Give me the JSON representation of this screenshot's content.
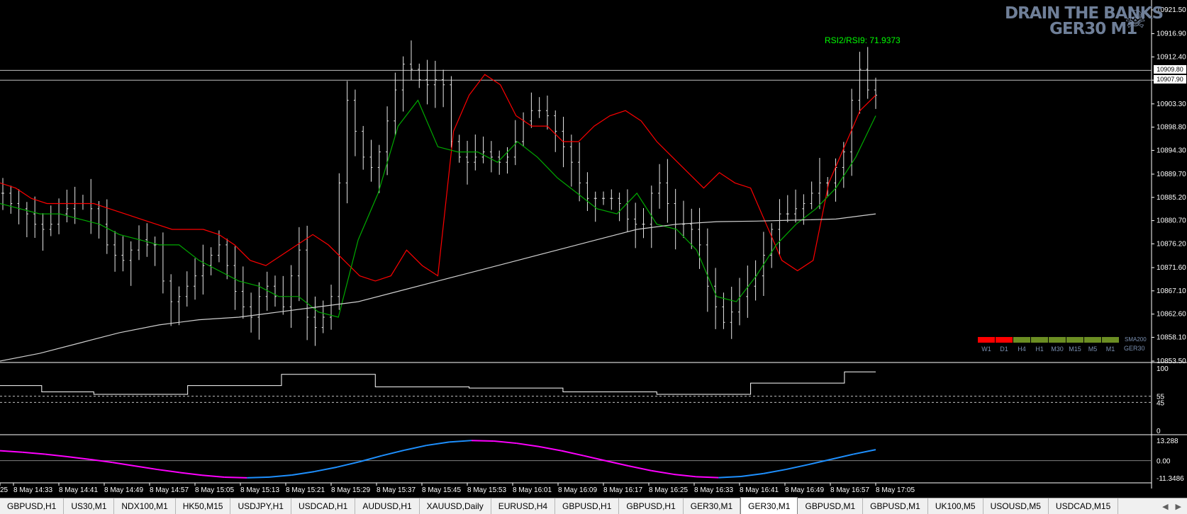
{
  "brand": {
    "line1": "DRAIN THE BANKS",
    "line2": "GER30 M1",
    "logo_icon": "skull-crossbones-icon"
  },
  "indicator_label": "RSI2/RSI9: 71.9373",
  "price_markers": [
    "10909.80",
    "10907.90"
  ],
  "timeframe_panel": {
    "items": [
      {
        "label": "W1",
        "color": "#ff0000"
      },
      {
        "label": "D1",
        "color": "#ff0000"
      },
      {
        "label": "H4",
        "color": "#6b8e23"
      },
      {
        "label": "H1",
        "color": "#6b8e23"
      },
      {
        "label": "M30",
        "color": "#6b8e23"
      },
      {
        "label": "M15",
        "color": "#6b8e23"
      },
      {
        "label": "M5",
        "color": "#6b8e23"
      },
      {
        "label": "M1",
        "color": "#6b8e23"
      }
    ],
    "sma_label": "SMA200",
    "symbol_label": "GER30"
  },
  "tabs": [
    {
      "label": "GBPUSD,H1"
    },
    {
      "label": "US30,M1"
    },
    {
      "label": "NDX100,M1"
    },
    {
      "label": "HK50,M15"
    },
    {
      "label": "USDJPY,H1"
    },
    {
      "label": "USDCAD,H1"
    },
    {
      "label": "AUDUSD,H1"
    },
    {
      "label": "XAUUSD,Daily"
    },
    {
      "label": "EURUSD,H4"
    },
    {
      "label": "GBPUSD,H1"
    },
    {
      "label": "GBPUSD,H1"
    },
    {
      "label": "GER30,M1"
    },
    {
      "label": "GER30,M1",
      "active": true
    },
    {
      "label": "GBPUSD,M1"
    },
    {
      "label": "GBPUSD,M1"
    },
    {
      "label": "UK100,M5"
    },
    {
      "label": "USOUSD,M5"
    },
    {
      "label": "USDCAD,M15"
    }
  ],
  "tab_nav": {
    "left_icon": "arrow-left-icon",
    "right_icon": "arrow-right-icon"
  },
  "chart_data": [
    {
      "type": "ohlc",
      "title": "GER30 M1",
      "ylim": [
        10853.5,
        10921.5
      ],
      "y_ticks": [
        "10921.50",
        "10916.90",
        "10912.40",
        "10907.90",
        "10903.30",
        "10898.80",
        "10894.30",
        "10889.70",
        "10885.20",
        "10880.70",
        "10876.20",
        "10871.60",
        "10867.10",
        "10862.60",
        "10858.10",
        "10853.50"
      ],
      "x_ticks": [
        "25",
        "8 May 14:33",
        "8 May 14:41",
        "8 May 14:49",
        "8 May 14:57",
        "8 May 15:05",
        "8 May 15:13",
        "8 May 15:21",
        "8 May 15:29",
        "8 May 15:37",
        "8 May 15:45",
        "8 May 15:53",
        "8 May 16:01",
        "8 May 16:09",
        "8 May 16:17",
        "8 May 16:25",
        "8 May 16:33",
        "8 May 16:41",
        "8 May 16:49",
        "8 May 16:57",
        "8 May 17:05"
      ],
      "horizontal_lines": [
        10909.8,
        10907.9
      ],
      "close": [
        10886,
        10884,
        10883,
        10882,
        10880,
        10879,
        10880,
        10882,
        10883,
        10884,
        10884,
        10883,
        10880,
        10876,
        10874,
        10873,
        10875,
        10877,
        10876,
        10876,
        10869,
        10865,
        10866,
        10868,
        10870,
        10872,
        10874,
        10876,
        10872,
        10867,
        10864,
        10862,
        10866,
        10868,
        10866,
        10864,
        10870,
        10875,
        10862,
        10860,
        10862,
        10866,
        10888,
        10904,
        10898,
        10893,
        10891,
        10894,
        10900,
        10906,
        10911,
        10910,
        10908,
        10907,
        10908,
        10907,
        10896,
        10893,
        10892,
        10893,
        10894,
        10893,
        10892,
        10893,
        10896,
        10900,
        10902,
        10902,
        10901,
        10898,
        10895,
        10892,
        10888,
        10885,
        10885,
        10885,
        10885,
        10884,
        10881,
        10880,
        10880,
        10886,
        10888,
        10884,
        10880,
        10880,
        10879,
        10876,
        10868,
        10864,
        10861,
        10863,
        10866,
        10868,
        10870,
        10874,
        10879,
        10882,
        10882,
        10883,
        10884,
        10886,
        10888,
        10888,
        10891,
        10894,
        10904,
        10910,
        10906,
        10905
      ],
      "series": [
        {
          "name": "EMA fast",
          "color": "#ff0000",
          "values": [
            10888,
            10887,
            10885,
            10884,
            10884,
            10884,
            10884,
            10883,
            10882,
            10881,
            10880,
            10879,
            10879,
            10879,
            10878,
            10876,
            10873,
            10872,
            10874,
            10876,
            10878,
            10876,
            10873,
            10870,
            10869,
            10870,
            10875,
            10872,
            10870,
            10898,
            10905,
            10909,
            10907,
            10901,
            10899,
            10899,
            10896,
            10896,
            10899,
            10901,
            10902,
            10900,
            10896,
            10893,
            10890,
            10887,
            10890,
            10888,
            10887,
            10880,
            10873,
            10871,
            10873,
            10888,
            10895,
            10902,
            10905
          ]
        },
        {
          "name": "EMA slow",
          "color": "#00aa00",
          "values": [
            10884,
            10883,
            10882,
            10882,
            10881,
            10880,
            10878,
            10877,
            10876,
            10876,
            10873,
            10871,
            10869,
            10868,
            10866,
            10866,
            10863,
            10862,
            10877,
            10886,
            10899,
            10904,
            10895,
            10894,
            10894,
            10892,
            10896,
            10893,
            10889,
            10886,
            10883,
            10882,
            10886,
            10880,
            10879,
            10875,
            10866,
            10865,
            10870,
            10876,
            10880,
            10883,
            10887,
            10893,
            10901
          ]
        },
        {
          "name": "SMA200",
          "color": "#d0d0d0",
          "values": [
            10853.5,
            10855,
            10857,
            10859,
            10860.5,
            10861.5,
            10862,
            10863,
            10864,
            10865,
            10867,
            10869,
            10871,
            10873,
            10875,
            10877,
            10879,
            10880,
            10880.5,
            10880.6,
            10880.8,
            10881,
            10882
          ]
        }
      ]
    },
    {
      "type": "step",
      "title": "",
      "ylim": [
        0,
        100
      ],
      "y_ticks": [
        "100",
        "55",
        "45",
        "0"
      ],
      "levels": [
        55,
        45
      ],
      "values": [
        72,
        72,
        72,
        72,
        62,
        62,
        62,
        62,
        62,
        58,
        58,
        58,
        58,
        58,
        58,
        58,
        58,
        58,
        72,
        72,
        72,
        72,
        72,
        72,
        72,
        72,
        72,
        90,
        90,
        90,
        90,
        90,
        90,
        90,
        90,
        90,
        70,
        70,
        70,
        70,
        70,
        70,
        70,
        70,
        70,
        68,
        68,
        68,
        68,
        68,
        68,
        68,
        68,
        68,
        62,
        62,
        62,
        62,
        62,
        62,
        62,
        62,
        62,
        58,
        58,
        58,
        58,
        58,
        58,
        58,
        58,
        58,
        76,
        76,
        76,
        76,
        76,
        76,
        76,
        76,
        76,
        94,
        94,
        94,
        94
      ]
    },
    {
      "type": "line",
      "title": "",
      "ylim": [
        -11.3486,
        13.288
      ],
      "y_ticks": [
        "13.288",
        "0.00",
        "-11.3486"
      ],
      "series": [
        {
          "name": "",
          "values": [
            6.5,
            5.5,
            4.2,
            2.6,
            0.8,
            -1.2,
            -3.5,
            -5.8,
            -7.8,
            -9.6,
            -10.9,
            -11.3,
            -10.8,
            -9.5,
            -7.2,
            -4.3,
            -0.8,
            3.2,
            6.8,
            10.0,
            12.2,
            13.2,
            12.8,
            11.4,
            9.2,
            6.5,
            3.2,
            -0.2,
            -3.5,
            -6.6,
            -9.0,
            -10.6,
            -11.2,
            -10.4,
            -8.5,
            -5.8,
            -2.6,
            0.8,
            4.2,
            7.2
          ]
        }
      ]
    }
  ]
}
